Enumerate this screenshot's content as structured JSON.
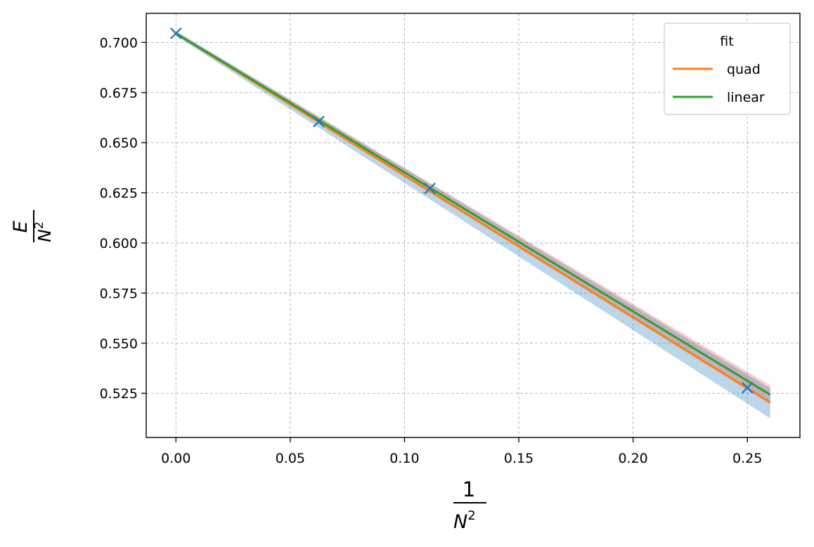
{
  "chart_data": {
    "type": "line",
    "xlabel": {
      "numerator": "1",
      "denominator_base": "N",
      "denominator_exp": "2"
    },
    "ylabel": {
      "numerator": "E",
      "denominator_base": "N",
      "denominator_exp": "2"
    },
    "xlim": [
      -0.013,
      0.273
    ],
    "ylim": [
      0.503,
      0.7145
    ],
    "x_ticks": [
      0.0,
      0.05,
      0.1,
      0.15,
      0.2,
      0.25
    ],
    "x_tick_labels": [
      "0.00",
      "0.05",
      "0.10",
      "0.15",
      "0.20",
      "0.25"
    ],
    "y_ticks": [
      0.525,
      0.55,
      0.575,
      0.6,
      0.625,
      0.65,
      0.675,
      0.7
    ],
    "y_tick_labels": [
      "0.525",
      "0.550",
      "0.575",
      "0.600",
      "0.625",
      "0.650",
      "0.675",
      "0.700"
    ],
    "grid": true,
    "legend": {
      "title": "fit",
      "placement": "top-right"
    },
    "colors": {
      "data": "#1f77b4",
      "quad": "#ff7f0e",
      "linear": "#2ca02c",
      "band_quad": "#1f77b4",
      "band_linear": "#d62728"
    },
    "data_points": {
      "marker": "x",
      "x": [
        0.0,
        0.0625,
        0.1111,
        0.25
      ],
      "y": [
        0.7045,
        0.6605,
        0.6272,
        0.5278
      ]
    },
    "series": [
      {
        "name": "quad",
        "x": [
          0.0,
          0.26
        ],
        "y": [
          0.7045,
          0.5205
        ],
        "band": {
          "x": [
            0.0,
            0.26
          ],
          "lower": [
            0.7033,
            0.5125
          ],
          "upper": [
            0.7057,
            0.5275
          ]
        }
      },
      {
        "name": "linear",
        "x": [
          0.0,
          0.26
        ],
        "y": [
          0.7045,
          0.5243
        ],
        "band": {
          "x": [
            0.0,
            0.26
          ],
          "lower": [
            0.7036,
            0.5196
          ],
          "upper": [
            0.7054,
            0.529
          ]
        }
      }
    ]
  }
}
